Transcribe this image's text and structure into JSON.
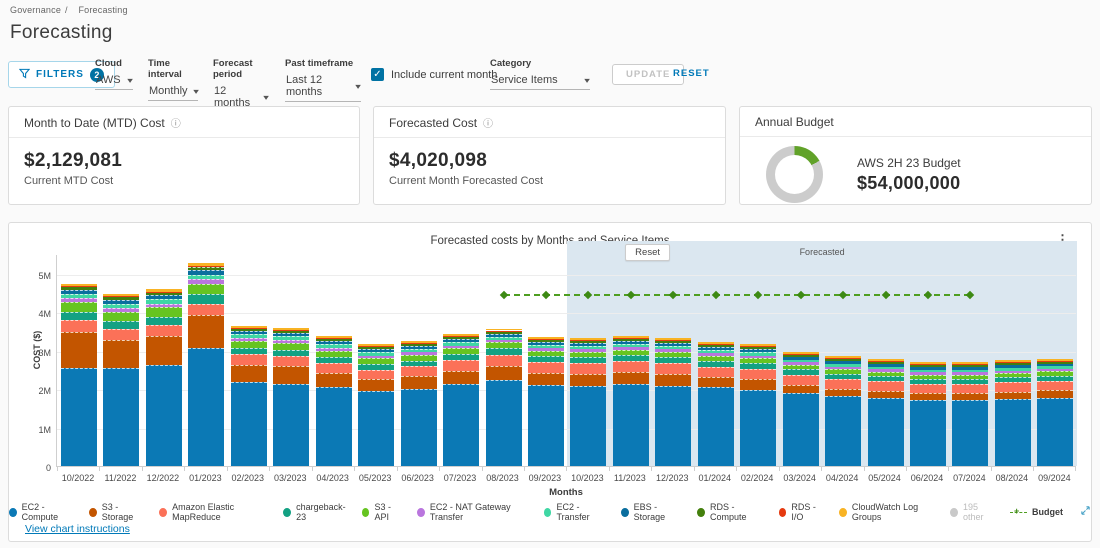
{
  "breadcrumb": {
    "items": [
      "Governance",
      "Forecasting"
    ],
    "separator": "/"
  },
  "page_title": "Forecasting",
  "filters": {
    "filters_button": {
      "label": "FILTERS",
      "badge": "2"
    },
    "groups": [
      {
        "label": "Cloud",
        "value": "AWS"
      },
      {
        "label": "Time interval",
        "value": "Monthly"
      },
      {
        "label": "Forecast period",
        "value": "12 months"
      },
      {
        "label": "Past timeframe",
        "value": "Last 12 months"
      },
      {
        "label": "Category",
        "value": "Service Items"
      }
    ],
    "include_current_month": {
      "label": "Include current month",
      "checked": true
    },
    "update_label": "UPDATE",
    "reset_label": "RESET"
  },
  "cards": {
    "mtd": {
      "title": "Month to Date (MTD) Cost",
      "value": "$2,129,081",
      "subtitle": "Current MTD Cost"
    },
    "forecasted": {
      "title": "Forecasted Cost",
      "value": "$4,020,098",
      "subtitle": "Current Month Forecasted Cost"
    },
    "budget": {
      "title": "Annual Budget",
      "name": "AWS 2H 23 Budget",
      "value": "$54,000,000",
      "donut_pct": 17,
      "donut_color": "#61a229",
      "ring_color": "#cccccc"
    }
  },
  "chart": {
    "instructions_link": "View chart instructions"
  },
  "chart_data": {
    "type": "bar",
    "stacked": true,
    "title": "Forecasted costs by Months and Service Items",
    "xlabel": "Months",
    "ylabel": "COST ($)",
    "unit": "millions USD",
    "ylim": [
      0,
      5.5
    ],
    "y_ticks": [
      "0",
      "1M",
      "2M",
      "3M",
      "4M",
      "5M"
    ],
    "grid": true,
    "legend_position": "bottom",
    "categories": [
      "10/2022",
      "11/2022",
      "12/2022",
      "01/2023",
      "02/2023",
      "03/2023",
      "04/2023",
      "05/2023",
      "06/2023",
      "07/2023",
      "08/2023",
      "09/2023",
      "10/2023",
      "11/2023",
      "12/2023",
      "01/2024",
      "02/2024",
      "03/2024",
      "04/2024",
      "05/2024",
      "06/2024",
      "07/2024",
      "08/2024",
      "09/2024"
    ],
    "series": [
      {
        "name": "EC2 - Compute",
        "color": "#0b79b5",
        "values": [
          2.55,
          2.55,
          2.62,
          3.06,
          2.17,
          2.12,
          2.04,
          1.94,
          1.99,
          2.14,
          2.24,
          2.11,
          2.09,
          2.12,
          2.07,
          2.04,
          1.97,
          1.89,
          1.81,
          1.77,
          1.71,
          1.71,
          1.74,
          1.77
        ]
      },
      {
        "name": "S3 - Storage",
        "color": "#c35500",
        "values": [
          0.94,
          0.72,
          0.76,
          0.85,
          0.46,
          0.47,
          0.38,
          0.33,
          0.35,
          0.33,
          0.35,
          0.31,
          0.3,
          0.32,
          0.32,
          0.28,
          0.29,
          0.22,
          0.2,
          0.19,
          0.18,
          0.18,
          0.19,
          0.2
        ]
      },
      {
        "name": "Amazon Elastic MapReduce",
        "color": "#fb7158",
        "values": [
          0.3,
          0.28,
          0.28,
          0.31,
          0.28,
          0.27,
          0.25,
          0.23,
          0.25,
          0.28,
          0.3,
          0.28,
          0.28,
          0.28,
          0.28,
          0.26,
          0.26,
          0.25,
          0.25,
          0.24,
          0.23,
          0.23,
          0.24,
          0.24
        ]
      },
      {
        "name": "chargeback-23",
        "color": "#13a183",
        "values": [
          0.2,
          0.22,
          0.22,
          0.24,
          0.16,
          0.16,
          0.15,
          0.15,
          0.15,
          0.16,
          0.17,
          0.16,
          0.16,
          0.16,
          0.16,
          0.16,
          0.15,
          0.15,
          0.14,
          0.14,
          0.14,
          0.14,
          0.14,
          0.14
        ]
      },
      {
        "name": "S3 - API",
        "color": "#66c421",
        "pattern": "dots",
        "values": [
          0.27,
          0.24,
          0.24,
          0.28,
          0.18,
          0.18,
          0.17,
          0.15,
          0.15,
          0.15,
          0.15,
          0.14,
          0.14,
          0.14,
          0.14,
          0.13,
          0.13,
          0.12,
          0.12,
          0.11,
          0.11,
          0.11,
          0.11,
          0.11
        ]
      },
      {
        "name": "EC2 - NAT Gateway Transfer",
        "color": "#ba76de",
        "values": [
          0.1,
          0.1,
          0.1,
          0.11,
          0.08,
          0.08,
          0.08,
          0.07,
          0.07,
          0.07,
          0.07,
          0.07,
          0.07,
          0.07,
          0.07,
          0.07,
          0.07,
          0.06,
          0.06,
          0.06,
          0.06,
          0.06,
          0.06,
          0.06
        ]
      },
      {
        "name": "EC2 - Transfer",
        "color": "#3fd7a4",
        "values": [
          0.11,
          0.11,
          0.11,
          0.12,
          0.09,
          0.09,
          0.09,
          0.08,
          0.08,
          0.08,
          0.08,
          0.08,
          0.08,
          0.08,
          0.08,
          0.08,
          0.08,
          0.07,
          0.07,
          0.07,
          0.07,
          0.07,
          0.07,
          0.07
        ]
      },
      {
        "name": "EBS - Storage",
        "color": "#0a6e9e",
        "values": [
          0.1,
          0.1,
          0.1,
          0.11,
          0.09,
          0.09,
          0.08,
          0.08,
          0.08,
          0.08,
          0.08,
          0.08,
          0.08,
          0.08,
          0.08,
          0.08,
          0.08,
          0.07,
          0.07,
          0.07,
          0.07,
          0.07,
          0.07,
          0.07
        ]
      },
      {
        "name": "RDS - Compute",
        "color": "#44800d",
        "values": [
          0.07,
          0.07,
          0.07,
          0.08,
          0.05,
          0.05,
          0.05,
          0.05,
          0.05,
          0.05,
          0.05,
          0.05,
          0.05,
          0.05,
          0.05,
          0.05,
          0.05,
          0.05,
          0.05,
          0.05,
          0.05,
          0.05,
          0.05,
          0.05
        ]
      },
      {
        "name": "RDS - I/O",
        "color": "#e53a10",
        "values": [
          0.03,
          0.03,
          0.03,
          0.04,
          0.03,
          0.03,
          0.03,
          0.03,
          0.03,
          0.03,
          0.03,
          0.03,
          0.03,
          0.03,
          0.03,
          0.03,
          0.03,
          0.03,
          0.03,
          0.03,
          0.03,
          0.03,
          0.03,
          0.03
        ]
      },
      {
        "name": "CloudWatch Log Groups",
        "color": "#f8b324",
        "values": [
          0.06,
          0.06,
          0.06,
          0.07,
          0.05,
          0.05,
          0.05,
          0.05,
          0.05,
          0.05,
          0.05,
          0.05,
          0.05,
          0.05,
          0.05,
          0.05,
          0.05,
          0.05,
          0.05,
          0.05,
          0.05,
          0.05,
          0.05,
          0.05
        ]
      }
    ],
    "other_series": {
      "label": "195 other",
      "color": "#c9c9c9",
      "hidden": true
    },
    "budget": {
      "label": "Budget",
      "value": 4.5,
      "color": "#4f9e21",
      "start_month": "08/2023",
      "end_month": "07/2024",
      "start_index": 10,
      "end_index": 21
    },
    "forecast_region": {
      "label": "Forecasted",
      "reset_label": "Reset",
      "start_index": 12,
      "fill": "#dbe7f0"
    }
  }
}
